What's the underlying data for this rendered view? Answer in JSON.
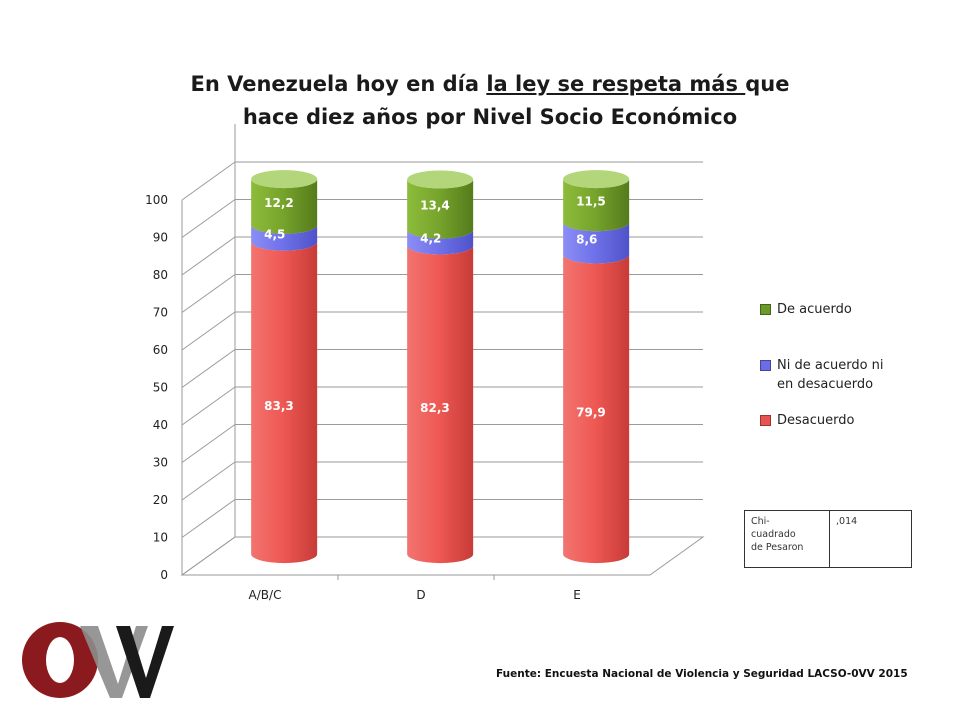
{
  "title": {
    "part1": "En Venezuela hoy en día ",
    "underlined": "la ley se respeta más ",
    "part2": "que",
    "line2": "hace diez años por Nivel Socio Económico"
  },
  "chart_data": {
    "type": "bar",
    "stacked": true,
    "style": "3d-cylinder",
    "categories": [
      "A/B/C",
      "D",
      "E"
    ],
    "series": [
      {
        "name": "Desacuerdo",
        "values": [
          83.3,
          82.3,
          79.9
        ],
        "labels": [
          "83,3",
          "82,3",
          "79,9"
        ],
        "color": "#e8534f"
      },
      {
        "name": "Ni de acuerdo ni en desacuerdo",
        "values": [
          4.5,
          4.2,
          8.6
        ],
        "labels": [
          "4,5",
          "4,2",
          "8,6"
        ],
        "color": "#6b6de6"
      },
      {
        "name": "De acuerdo",
        "values": [
          12.2,
          13.4,
          11.5
        ],
        "labels": [
          "12,2",
          "13,4",
          "11,5"
        ],
        "color": "#6c9a2a"
      }
    ],
    "ylim": [
      0,
      100
    ],
    "yticks": [
      0,
      10,
      20,
      30,
      40,
      50,
      60,
      70,
      80,
      90,
      100
    ],
    "grid": true,
    "legend_position": "right"
  },
  "legend": {
    "de_acuerdo": "De acuerdo",
    "ni_line1": "Ni de acuerdo ni",
    "ni_line2": "en desacuerdo",
    "desacuerdo": "Desacuerdo"
  },
  "stats": {
    "label_line1": "Chi-",
    "label_line2": "cuadrado",
    "label_line3": "de Pesaron",
    "value": ",014"
  },
  "source": "Fuente: Encuesta Nacional de Violencia y Seguridad LACSO-0VV 2015",
  "logo": {
    "text": "OVV"
  }
}
